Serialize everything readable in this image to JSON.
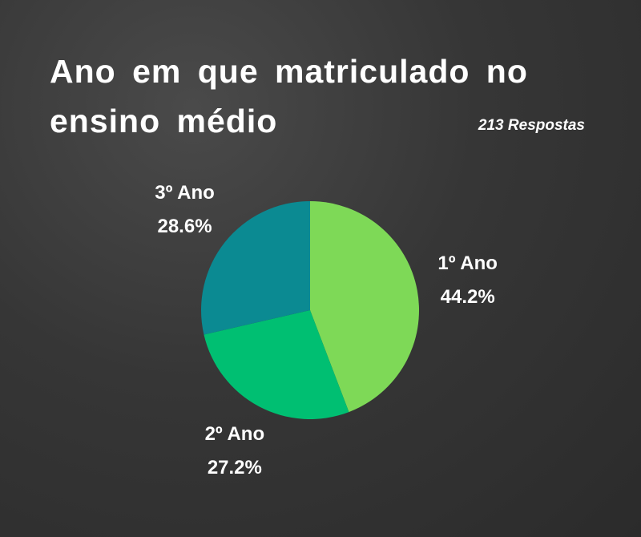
{
  "chart_data": {
    "type": "pie",
    "title": "Ano em que matriculado no ensino médio",
    "subtitle": "213 Respostas",
    "categories": [
      "1º Ano",
      "2º Ano",
      "3º Ano"
    ],
    "values": [
      44.2,
      27.2,
      28.6
    ],
    "value_labels": [
      "44.2%",
      "27.2%",
      "28.6%"
    ],
    "colors": [
      "#7ed957",
      "#00bf72",
      "#0b8a92"
    ]
  }
}
